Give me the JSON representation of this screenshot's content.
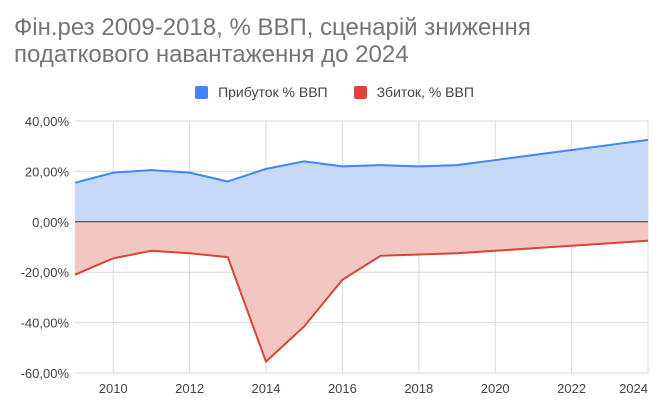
{
  "chart_data": {
    "type": "area",
    "title": "Фін.рез 2009-2018, % ВВП, сценарій зниження\nподаткового навантаження до 2024",
    "x": [
      2009,
      2010,
      2011,
      2012,
      2013,
      2014,
      2015,
      2016,
      2017,
      2018,
      2019,
      2020,
      2021,
      2022,
      2023,
      2024
    ],
    "series": [
      {
        "name": "Прибуток % ВВП",
        "color": "#4285f4",
        "fill": "#c6d9f8",
        "values": [
          15.5,
          19.5,
          20.5,
          19.5,
          16,
          21,
          24,
          22,
          22.5,
          22,
          22.5,
          24.5,
          26.5,
          28.5,
          30.5,
          32.5
        ]
      },
      {
        "name": "Збиток, % ВВП",
        "color": "#db4437",
        "fill": "#f3c6c2",
        "values": [
          -21,
          -14.5,
          -11.5,
          -12.5,
          -14,
          -55.5,
          -41.5,
          -23,
          -13.5,
          -13,
          -12.5,
          -11.5,
          -10.5,
          -9.5,
          -8.5,
          -7.5
        ]
      }
    ],
    "xlabel": "",
    "ylabel": "",
    "xlim": [
      2009,
      2024
    ],
    "ylim": [
      -60,
      40
    ],
    "x_ticks": [
      2010,
      2012,
      2014,
      2016,
      2018,
      2020,
      2022,
      2024
    ],
    "x_tick_labels": [
      "2010",
      "2012",
      "2014",
      "2016",
      "2018",
      "2020",
      "2022",
      "2024"
    ],
    "y_ticks": [
      -60,
      -40,
      -20,
      0,
      20,
      40
    ],
    "y_tick_labels": [
      "-60,00%",
      "-40,00%",
      "-20,00%",
      "0,00%",
      "20,00%",
      "40,00%"
    ],
    "grid": true,
    "legend_position": "top"
  }
}
